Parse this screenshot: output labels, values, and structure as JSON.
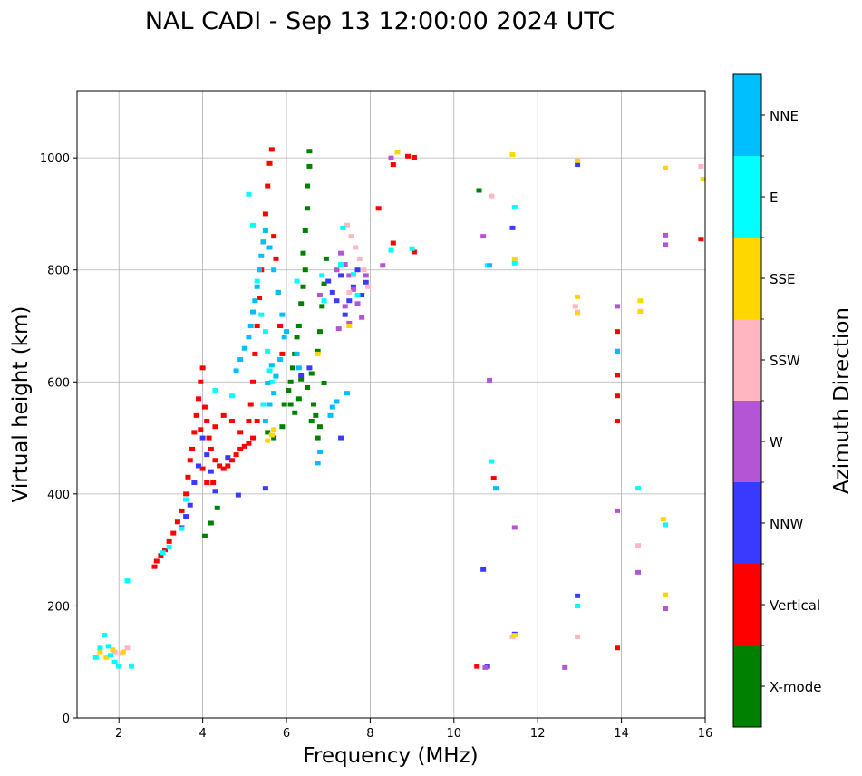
{
  "chart_data": {
    "type": "scatter",
    "title": "NAL CADI - Sep 13 12:00:00 2024 UTC",
    "xlabel": "Frequency (MHz)",
    "ylabel": "Virtual height (km)",
    "xlim": [
      1,
      16
    ],
    "ylim": [
      0,
      1120
    ],
    "x_ticks": [
      2,
      4,
      6,
      8,
      10,
      12,
      14,
      16
    ],
    "y_ticks": [
      0,
      200,
      400,
      600,
      800,
      1000
    ],
    "grid": true,
    "colorbar": {
      "label": "Azimuth Direction",
      "categories": [
        {
          "name": "X-mode",
          "color": "#008000"
        },
        {
          "name": "Vertical",
          "color": "#ff0000"
        },
        {
          "name": "NNW",
          "color": "#3a3aff"
        },
        {
          "name": "W",
          "color": "#b455d6"
        },
        {
          "name": "SSW",
          "color": "#ffb6c1"
        },
        {
          "name": "SSE",
          "color": "#ffd700"
        },
        {
          "name": "E",
          "color": "#00ffff"
        },
        {
          "name": "NNE",
          "color": "#00bfff"
        }
      ]
    },
    "series": [
      {
        "name": "X-mode",
        "points": [
          [
            4.2,
            348
          ],
          [
            4.35,
            375
          ],
          [
            4.05,
            325
          ],
          [
            5.55,
            510
          ],
          [
            5.7,
            500
          ],
          [
            5.9,
            520
          ],
          [
            5.95,
            560
          ],
          [
            6.05,
            585
          ],
          [
            6.1,
            600
          ],
          [
            6.15,
            625
          ],
          [
            6.2,
            650
          ],
          [
            6.25,
            680
          ],
          [
            6.3,
            700
          ],
          [
            6.35,
            740
          ],
          [
            6.4,
            770
          ],
          [
            6.45,
            800
          ],
          [
            6.4,
            830
          ],
          [
            6.45,
            870
          ],
          [
            6.5,
            910
          ],
          [
            6.5,
            950
          ],
          [
            6.55,
            985
          ],
          [
            6.55,
            1012
          ],
          [
            6.1,
            560
          ],
          [
            6.2,
            545
          ],
          [
            6.3,
            570
          ],
          [
            6.35,
            605
          ],
          [
            6.5,
            590
          ],
          [
            6.6,
            615
          ],
          [
            6.65,
            560
          ],
          [
            6.7,
            540
          ],
          [
            6.75,
            655
          ],
          [
            6.8,
            690
          ],
          [
            6.85,
            735
          ],
          [
            6.9,
            775
          ],
          [
            6.95,
            820
          ],
          [
            6.9,
            598
          ],
          [
            6.8,
            520
          ],
          [
            6.75,
            500
          ],
          [
            6.6,
            530
          ],
          [
            10.6,
            942
          ]
        ]
      },
      {
        "name": "Vertical",
        "points": [
          [
            2.85,
            270
          ],
          [
            2.9,
            280
          ],
          [
            3.0,
            290
          ],
          [
            3.1,
            300
          ],
          [
            3.2,
            315
          ],
          [
            3.3,
            330
          ],
          [
            3.4,
            350
          ],
          [
            3.5,
            370
          ],
          [
            3.6,
            400
          ],
          [
            3.65,
            430
          ],
          [
            3.7,
            460
          ],
          [
            3.75,
            480
          ],
          [
            3.8,
            510
          ],
          [
            3.85,
            540
          ],
          [
            3.9,
            570
          ],
          [
            3.95,
            600
          ],
          [
            4.0,
            625
          ],
          [
            4.05,
            555
          ],
          [
            4.1,
            530
          ],
          [
            4.15,
            500
          ],
          [
            4.2,
            480
          ],
          [
            4.3,
            460
          ],
          [
            4.4,
            450
          ],
          [
            4.5,
            445
          ],
          [
            4.6,
            450
          ],
          [
            4.7,
            460
          ],
          [
            4.8,
            470
          ],
          [
            4.9,
            480
          ],
          [
            5.0,
            485
          ],
          [
            5.1,
            490
          ],
          [
            5.2,
            500
          ],
          [
            4.3,
            520
          ],
          [
            4.5,
            540
          ],
          [
            4.7,
            530
          ],
          [
            4.9,
            510
          ],
          [
            5.1,
            530
          ],
          [
            5.15,
            560
          ],
          [
            5.2,
            600
          ],
          [
            5.25,
            650
          ],
          [
            5.3,
            700
          ],
          [
            5.35,
            750
          ],
          [
            5.4,
            800
          ],
          [
            5.45,
            850
          ],
          [
            5.5,
            900
          ],
          [
            5.55,
            950
          ],
          [
            5.6,
            990
          ],
          [
            5.65,
            1015
          ],
          [
            5.7,
            860
          ],
          [
            5.75,
            820
          ],
          [
            5.8,
            760
          ],
          [
            5.85,
            700
          ],
          [
            5.9,
            650
          ],
          [
            3.95,
            515
          ],
          [
            4.0,
            445
          ],
          [
            4.1,
            420
          ],
          [
            4.25,
            420
          ],
          [
            5.3,
            530
          ],
          [
            5.45,
            560
          ],
          [
            8.2,
            910
          ],
          [
            8.55,
            988
          ],
          [
            8.9,
            1003
          ],
          [
            9.05,
            1001
          ],
          [
            8.55,
            848
          ],
          [
            9.05,
            832
          ],
          [
            10.55,
            92
          ],
          [
            10.95,
            428
          ],
          [
            13.9,
            690
          ],
          [
            13.9,
            612
          ],
          [
            13.9,
            575
          ],
          [
            13.9,
            530
          ],
          [
            13.9,
            125
          ],
          [
            15.9,
            855
          ]
        ]
      },
      {
        "name": "NNW",
        "points": [
          [
            3.5,
            340
          ],
          [
            3.6,
            360
          ],
          [
            3.7,
            380
          ],
          [
            3.8,
            420
          ],
          [
            3.9,
            450
          ],
          [
            4.0,
            500
          ],
          [
            4.1,
            470
          ],
          [
            4.2,
            440
          ],
          [
            4.3,
            405
          ],
          [
            4.6,
            465
          ],
          [
            4.85,
            398
          ],
          [
            5.5,
            410
          ],
          [
            6.35,
            612
          ],
          [
            6.55,
            625
          ],
          [
            7.0,
            780
          ],
          [
            7.1,
            760
          ],
          [
            7.2,
            745
          ],
          [
            7.3,
            790
          ],
          [
            7.4,
            720
          ],
          [
            7.5,
            745
          ],
          [
            7.6,
            770
          ],
          [
            7.7,
            800
          ],
          [
            7.8,
            755
          ],
          [
            7.9,
            778
          ],
          [
            7.3,
            500
          ],
          [
            12.95,
            988
          ],
          [
            11.4,
            875
          ],
          [
            10.8,
            92
          ],
          [
            11.45,
            150
          ],
          [
            12.95,
            218
          ],
          [
            10.7,
            265
          ]
        ]
      },
      {
        "name": "W",
        "points": [
          [
            6.8,
            755
          ],
          [
            7.2,
            800
          ],
          [
            7.3,
            830
          ],
          [
            7.4,
            810
          ],
          [
            7.5,
            790
          ],
          [
            7.6,
            765
          ],
          [
            7.7,
            740
          ],
          [
            7.8,
            715
          ],
          [
            7.9,
            790
          ],
          [
            7.4,
            735
          ],
          [
            7.5,
            705
          ],
          [
            7.25,
            695
          ],
          [
            8.3,
            808
          ],
          [
            8.5,
            1000
          ],
          [
            10.7,
            860
          ],
          [
            10.85,
            603
          ],
          [
            11.45,
            340
          ],
          [
            12.65,
            90
          ],
          [
            13.9,
            735
          ],
          [
            13.9,
            655
          ],
          [
            13.9,
            370
          ],
          [
            14.4,
            260
          ],
          [
            15.05,
            862
          ],
          [
            15.05,
            845
          ],
          [
            15.05,
            195
          ],
          [
            10.75,
            90
          ]
        ]
      },
      {
        "name": "SSW",
        "points": [
          [
            7.45,
            880
          ],
          [
            7.55,
            860
          ],
          [
            7.65,
            840
          ],
          [
            7.75,
            820
          ],
          [
            7.85,
            800
          ],
          [
            7.95,
            770
          ],
          [
            7.6,
            790
          ],
          [
            7.5,
            760
          ],
          [
            1.9,
            118
          ],
          [
            2.05,
            115
          ],
          [
            2.2,
            125
          ],
          [
            10.9,
            932
          ],
          [
            11.4,
            145
          ],
          [
            12.9,
            735
          ],
          [
            12.95,
            725
          ],
          [
            12.95,
            145
          ],
          [
            14.4,
            308
          ],
          [
            15.9,
            985
          ]
        ]
      },
      {
        "name": "SSE",
        "points": [
          [
            1.55,
            118
          ],
          [
            1.7,
            108
          ],
          [
            1.85,
            122
          ],
          [
            2.1,
            118
          ],
          [
            5.55,
            495
          ],
          [
            5.65,
            505
          ],
          [
            5.7,
            515
          ],
          [
            6.75,
            650
          ],
          [
            7.5,
            700
          ],
          [
            8.65,
            1010
          ],
          [
            11.4,
            1006
          ],
          [
            11.45,
            820
          ],
          [
            12.95,
            752
          ],
          [
            12.95,
            722
          ],
          [
            12.95,
            995
          ],
          [
            14.45,
            745
          ],
          [
            14.45,
            726
          ],
          [
            15.05,
            982
          ],
          [
            15.0,
            355
          ],
          [
            15.05,
            220
          ],
          [
            15.95,
            962
          ],
          [
            11.45,
            148
          ]
        ]
      },
      {
        "name": "E",
        "points": [
          [
            1.45,
            108
          ],
          [
            1.55,
            125
          ],
          [
            1.65,
            148
          ],
          [
            1.75,
            128
          ],
          [
            1.8,
            112
          ],
          [
            1.9,
            100
          ],
          [
            2.0,
            92
          ],
          [
            2.3,
            92
          ],
          [
            2.2,
            245
          ],
          [
            3.05,
            295
          ],
          [
            3.2,
            305
          ],
          [
            3.5,
            338
          ],
          [
            3.6,
            390
          ],
          [
            4.3,
            585
          ],
          [
            4.7,
            575
          ],
          [
            5.1,
            935
          ],
          [
            5.2,
            880
          ],
          [
            5.3,
            780
          ],
          [
            5.4,
            720
          ],
          [
            5.5,
            690
          ],
          [
            5.55,
            655
          ],
          [
            5.6,
            620
          ],
          [
            5.65,
            600
          ],
          [
            5.45,
            560
          ],
          [
            6.25,
            780
          ],
          [
            6.85,
            790
          ],
          [
            6.9,
            745
          ],
          [
            7.3,
            810
          ],
          [
            7.35,
            875
          ],
          [
            7.6,
            792
          ],
          [
            7.7,
            755
          ],
          [
            8.5,
            835
          ],
          [
            9.0,
            838
          ],
          [
            10.8,
            808
          ],
          [
            10.9,
            458
          ],
          [
            11.45,
            912
          ],
          [
            11.45,
            812
          ],
          [
            12.95,
            200
          ],
          [
            14.4,
            410
          ],
          [
            15.05,
            345
          ]
        ]
      },
      {
        "name": "NNE",
        "points": [
          [
            4.8,
            620
          ],
          [
            4.9,
            640
          ],
          [
            5.0,
            660
          ],
          [
            5.1,
            680
          ],
          [
            5.15,
            700
          ],
          [
            5.2,
            725
          ],
          [
            5.25,
            745
          ],
          [
            5.3,
            770
          ],
          [
            5.35,
            800
          ],
          [
            5.4,
            825
          ],
          [
            5.45,
            850
          ],
          [
            5.5,
            870
          ],
          [
            5.6,
            840
          ],
          [
            5.7,
            800
          ],
          [
            5.8,
            760
          ],
          [
            5.9,
            720
          ],
          [
            6.0,
            690
          ],
          [
            5.5,
            530
          ],
          [
            5.6,
            560
          ],
          [
            5.7,
            580
          ],
          [
            5.75,
            610
          ],
          [
            5.85,
            640
          ],
          [
            5.95,
            680
          ],
          [
            5.55,
            598
          ],
          [
            5.65,
            630
          ],
          [
            6.25,
            650
          ],
          [
            6.3,
            625
          ],
          [
            6.75,
            455
          ],
          [
            6.8,
            475
          ],
          [
            7.05,
            540
          ],
          [
            7.1,
            555
          ],
          [
            7.2,
            565
          ],
          [
            7.45,
            580
          ],
          [
            10.85,
            808
          ],
          [
            11.0,
            410
          ],
          [
            13.9,
            655
          ]
        ]
      }
    ]
  }
}
